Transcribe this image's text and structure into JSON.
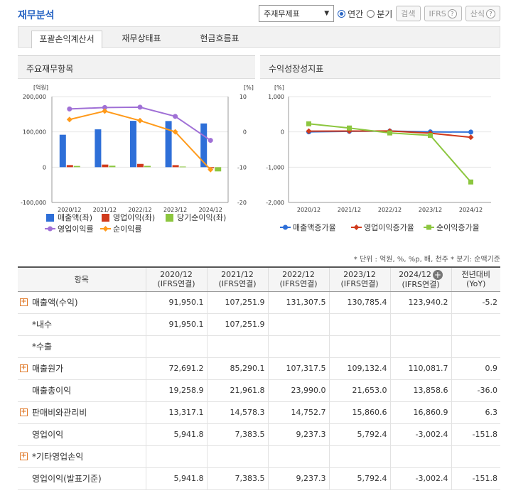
{
  "header": {
    "title": "재무분석",
    "select_value": "주재무제표",
    "radio_annual": "연간",
    "radio_quarter": "분기",
    "search_label": "검색",
    "ifrs_label": "IFRS",
    "formula_label": "산식"
  },
  "tabs": [
    {
      "label": "포괄손익계산서",
      "active": true
    },
    {
      "label": "재무상태표",
      "active": false
    },
    {
      "label": "현금흐름표",
      "active": false
    }
  ],
  "chart_left": {
    "title": "주요재무항목",
    "unit_left": "[억원]",
    "unit_right": "[%]"
  },
  "chart_right": {
    "title": "수익성장성지표",
    "unit_left": "[%]"
  },
  "chart_data": [
    {
      "type": "bar",
      "categories": [
        "2020/12",
        "2021/12",
        "2022/12",
        "2023/12",
        "2024/12"
      ],
      "ylim": [
        -100000,
        200000
      ],
      "y_ticks": [
        "200,000",
        "100,000",
        "0",
        "-100,000"
      ],
      "y2lim": [
        -20,
        10
      ],
      "y2_ticks": [
        "10",
        "0",
        "-10",
        "-20"
      ],
      "series": [
        {
          "name": "매출액(좌)",
          "color": "#2e6fd8",
          "axis": "left",
          "type": "bar",
          "values": [
            91950.1,
            107251.9,
            131307.5,
            130785.4,
            123940.2
          ]
        },
        {
          "name": "영업이익(좌)",
          "color": "#d03a1c",
          "axis": "left",
          "type": "bar",
          "values": [
            5941.8,
            7383.5,
            9237.3,
            5792.4,
            -3002.4
          ]
        },
        {
          "name": "당기순이익(좌)",
          "color": "#8cc63f",
          "axis": "left",
          "type": "bar",
          "values": [
            3500,
            4200,
            3700,
            1800,
            -12000
          ]
        },
        {
          "name": "영업이익률",
          "color": "#a070d6",
          "axis": "right",
          "type": "line",
          "values": [
            6.5,
            6.9,
            7.0,
            4.4,
            -2.4
          ]
        },
        {
          "name": "순이익률",
          "color": "#ff9a1a",
          "axis": "right",
          "type": "line",
          "values": [
            3.5,
            5.9,
            3.2,
            0,
            -10.7
          ]
        }
      ],
      "grid": true,
      "legend": "bottom"
    },
    {
      "type": "line",
      "categories": [
        "2020/12",
        "2021/12",
        "2022/12",
        "2023/12",
        "2024/12"
      ],
      "ylim": [
        -2000,
        1000
      ],
      "y_ticks": [
        "1,000",
        "0",
        "-1,000",
        "-2,000"
      ],
      "series": [
        {
          "name": "매출액증가율",
          "color": "#2e6fd8",
          "marker": "circle",
          "values": [
            0,
            16.6,
            22.4,
            -0.4,
            -5.2
          ]
        },
        {
          "name": "영업이익증가율",
          "color": "#d03a1c",
          "marker": "diamond",
          "values": [
            20,
            24.3,
            25.1,
            -37.3,
            -151.8
          ]
        },
        {
          "name": "순이익증가율",
          "color": "#8cc63f",
          "marker": "square",
          "values": [
            230,
            110,
            -30,
            -100,
            -1420
          ]
        }
      ],
      "grid": true,
      "legend": "bottom"
    }
  ],
  "note": "* 단위 : 억원, %, %p, 배, 천주    * 분기: 순액기준",
  "table": {
    "headers": [
      "항목",
      "2020/12\n(IFRS연결)",
      "2021/12\n(IFRS연결)",
      "2022/12\n(IFRS연결)",
      "2023/12\n(IFRS연결)",
      "2024/12\n(IFRS연결)",
      "전년대비\n(YoY)"
    ],
    "rows": [
      {
        "label": "매출액(수익)",
        "expand": true,
        "cells": [
          "91,950.1",
          "107,251.9",
          "131,307.5",
          "130,785.4",
          "123,940.2",
          "-5.2"
        ]
      },
      {
        "label": "*내수",
        "expand": false,
        "cells": [
          "91,950.1",
          "107,251.9",
          "",
          "",
          "",
          ""
        ]
      },
      {
        "label": "*수출",
        "expand": false,
        "cells": [
          "",
          "",
          "",
          "",
          "",
          ""
        ]
      },
      {
        "label": "매출원가",
        "expand": true,
        "cells": [
          "72,691.2",
          "85,290.1",
          "107,317.5",
          "109,132.4",
          "110,081.7",
          "0.9"
        ]
      },
      {
        "label": "매출총이익",
        "expand": false,
        "cells": [
          "19,258.9",
          "21,961.8",
          "23,990.0",
          "21,653.0",
          "13,858.6",
          "-36.0"
        ]
      },
      {
        "label": "판매비와관리비",
        "expand": true,
        "cells": [
          "13,317.1",
          "14,578.3",
          "14,752.7",
          "15,860.6",
          "16,860.9",
          "6.3"
        ]
      },
      {
        "label": "영업이익",
        "expand": false,
        "cells": [
          "5,941.8",
          "7,383.5",
          "9,237.3",
          "5,792.4",
          "-3,002.4",
          "-151.8"
        ]
      },
      {
        "label": "*기타영업손익",
        "expand": true,
        "cells": [
          "",
          "",
          "",
          "",
          "",
          ""
        ]
      },
      {
        "label": "영업이익(발표기준)",
        "expand": false,
        "cells": [
          "5,941.8",
          "7,383.5",
          "9,237.3",
          "5,792.4",
          "-3,002.4",
          "-151.8"
        ]
      }
    ]
  }
}
